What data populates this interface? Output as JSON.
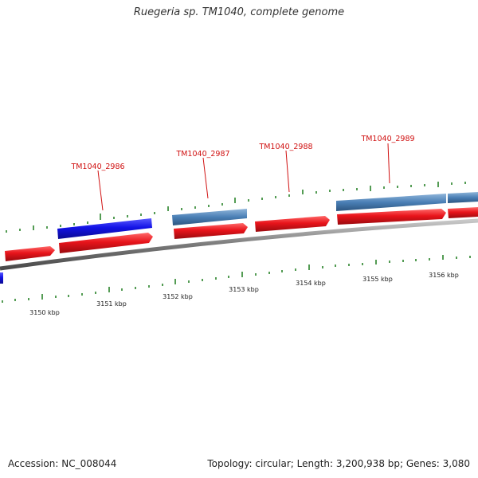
{
  "title": "Ruegeria sp. TM1040, complete genome",
  "accession": "Accession: NC_008044",
  "summary": "Topology: circular; Length: 3,200,938 bp; Genes: 3,080",
  "colors": {
    "cds_red": "#e8141b",
    "gene_blue": "#1313e6",
    "gene_steelblue": "#4a7fb5",
    "backbone": "#808080",
    "tick_green": "#1a7a1a",
    "label_red": "#d01010"
  },
  "gene_labels": [
    {
      "id": "TM1040_2986"
    },
    {
      "id": "TM1040_2987"
    },
    {
      "id": "TM1040_2988"
    },
    {
      "id": "TM1040_2989"
    }
  ],
  "scale_labels": [
    "3150 kbp",
    "3151 kbp",
    "3152 kbp",
    "3153 kbp",
    "3154 kbp",
    "3155 kbp",
    "3156 kbp"
  ]
}
